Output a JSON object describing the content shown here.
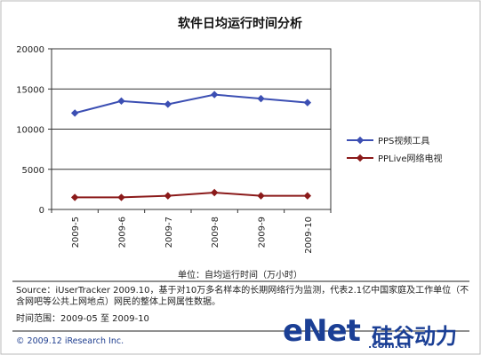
{
  "chart_data": {
    "type": "line",
    "title": "软件日均运行时间分析",
    "categories": [
      "2009-5",
      "2009-6",
      "2009-7",
      "2009-8",
      "2009-9",
      "2009-10"
    ],
    "ylim": [
      0,
      20000
    ],
    "yticks": [
      "0",
      "5000",
      "10000",
      "15000",
      "20000"
    ],
    "grid": true,
    "legend_position": "right",
    "unit_label": "单位：自均运行时间（万小时）",
    "series": [
      {
        "name": "PPS视频工具",
        "color": "#3c4fb3",
        "values": [
          12000,
          13500,
          13100,
          14300,
          13800,
          13300
        ]
      },
      {
        "name": "PPLive网络电视",
        "color": "#8b1a1a",
        "values": [
          1500,
          1500,
          1700,
          2100,
          1700,
          1700
        ]
      }
    ]
  },
  "footer": {
    "source": "Source：iUserTracker 2009.10，基于对10万多名样本的长期网络行为监测，代表2.1亿中国家庭及工作单位（不含网吧等公共上网地点）网民的整体上网属性数据。",
    "time_range": "时间范围：2009-05 至 2009-10",
    "copyright": "© 2009.12 iResearch Inc."
  },
  "watermark": {
    "text": "eNet",
    "cn_text": "硅谷动力",
    "domain": ".com.cn"
  }
}
